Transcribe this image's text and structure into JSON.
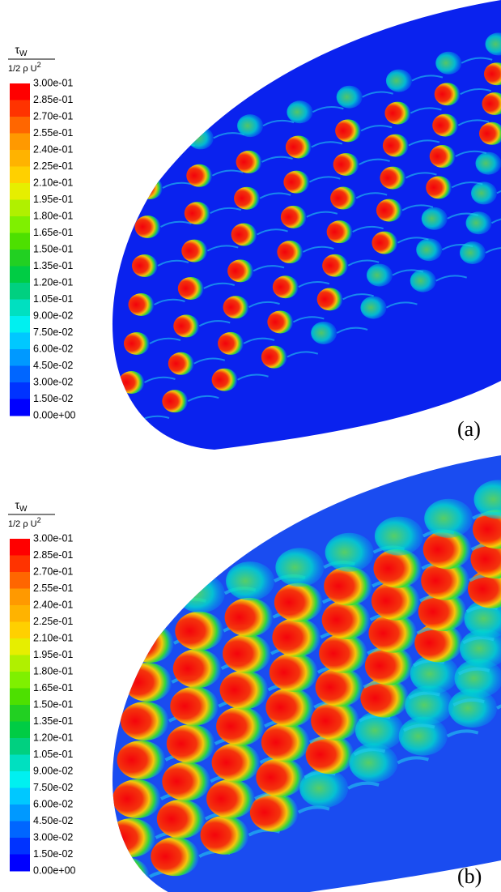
{
  "panels": [
    {
      "label": "(a)",
      "legend": {
        "numerator": {
          "symbol": "τ",
          "subscript": "W"
        },
        "denominator": {
          "text": "1/2 ρ U",
          "superscript": "2"
        },
        "levels": [
          "3.00e-01",
          "2.85e-01",
          "2.70e-01",
          "2.55e-01",
          "2.40e-01",
          "2.25e-01",
          "2.10e-01",
          "1.95e-01",
          "1.80e-01",
          "1.65e-01",
          "1.50e-01",
          "1.35e-01",
          "1.20e-01",
          "1.05e-01",
          "9.00e-02",
          "7.50e-02",
          "6.00e-02",
          "4.50e-02",
          "3.00e-02",
          "1.50e-02",
          "0.00e+00"
        ],
        "colors": [
          "#ff0000",
          "#ff3300",
          "#ff6600",
          "#ff9900",
          "#ffb300",
          "#ffd000",
          "#e6ee00",
          "#b0f000",
          "#7ff000",
          "#4de000",
          "#22d022",
          "#00cc44",
          "#00d080",
          "#00e0c0",
          "#00f0f0",
          "#00c8ff",
          "#0099ff",
          "#0066ff",
          "#0033ff",
          "#0000ff"
        ]
      }
    },
    {
      "label": "(b)",
      "legend": {
        "numerator": {
          "symbol": "τ",
          "subscript": "W"
        },
        "denominator": {
          "text": "1/2 ρ U",
          "superscript": "2"
        },
        "levels": [
          "3.00e-01",
          "2.85e-01",
          "2.70e-01",
          "2.55e-01",
          "2.40e-01",
          "2.25e-01",
          "2.10e-01",
          "1.95e-01",
          "1.80e-01",
          "1.65e-01",
          "1.50e-01",
          "1.35e-01",
          "1.20e-01",
          "1.05e-01",
          "9.00e-02",
          "7.50e-02",
          "6.00e-02",
          "4.50e-02",
          "3.00e-02",
          "1.50e-02",
          "0.00e+00"
        ],
        "colors": [
          "#ff0000",
          "#ff3300",
          "#ff6600",
          "#ff9900",
          "#ffb300",
          "#ffd000",
          "#e6ee00",
          "#b0f000",
          "#7ff000",
          "#4de000",
          "#22d022",
          "#00cc44",
          "#00d080",
          "#00e0c0",
          "#00f0f0",
          "#00c8ff",
          "#0099ff",
          "#0066ff",
          "#0033ff",
          "#0000ff"
        ]
      }
    }
  ]
}
